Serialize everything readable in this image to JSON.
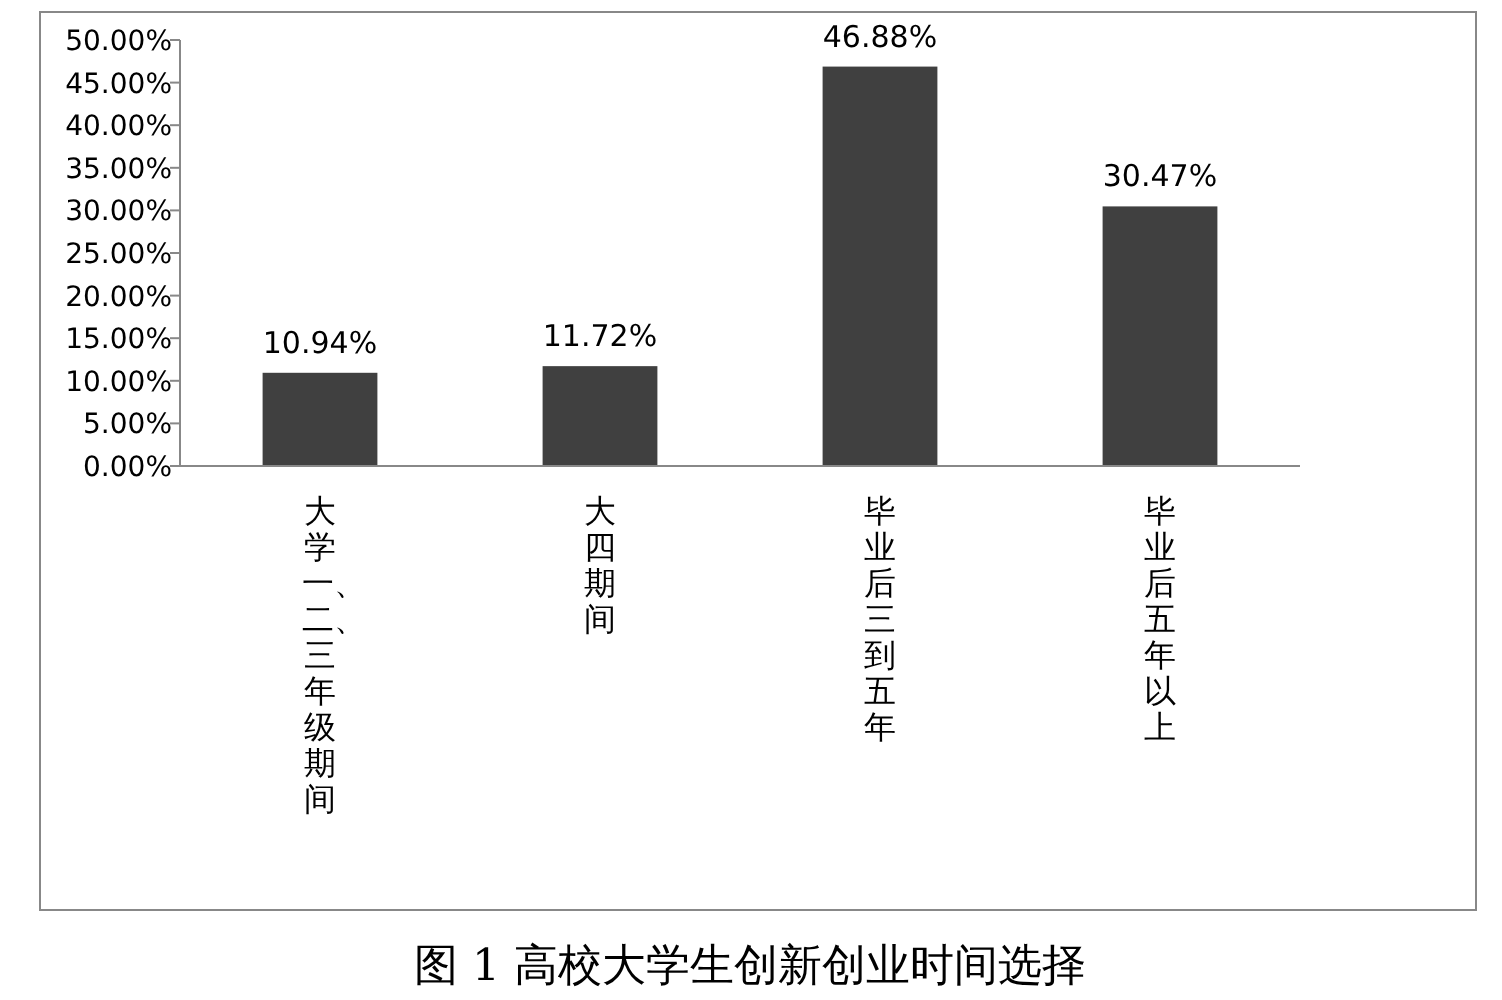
{
  "chart_data": {
    "type": "bar",
    "title": "图 1  高校大学生创新创业时间选择",
    "categories": [
      "大学一、二、三年级期间",
      "大四期间",
      "毕业后三到五年",
      "毕业后五年以上"
    ],
    "values": [
      10.94,
      11.72,
      46.88,
      30.47
    ],
    "value_labels": [
      "10.94%",
      "11.72%",
      "46.88%",
      "30.47%"
    ],
    "color": "#404040",
    "ylim": [
      0,
      50
    ],
    "yticks": [
      {
        "value": 0,
        "label": "0.00%"
      },
      {
        "value": 5,
        "label": "5.00%"
      },
      {
        "value": 10,
        "label": "10.00%"
      },
      {
        "value": 15,
        "label": "15.00%"
      },
      {
        "value": 20,
        "label": "20.00%"
      },
      {
        "value": 25,
        "label": "25.00%"
      },
      {
        "value": 30,
        "label": "30.00%"
      },
      {
        "value": 35,
        "label": "35.00%"
      },
      {
        "value": 40,
        "label": "40.00%"
      },
      {
        "value": 45,
        "label": "45.00%"
      },
      {
        "value": 50,
        "label": "50.00%"
      }
    ],
    "grid": false
  }
}
